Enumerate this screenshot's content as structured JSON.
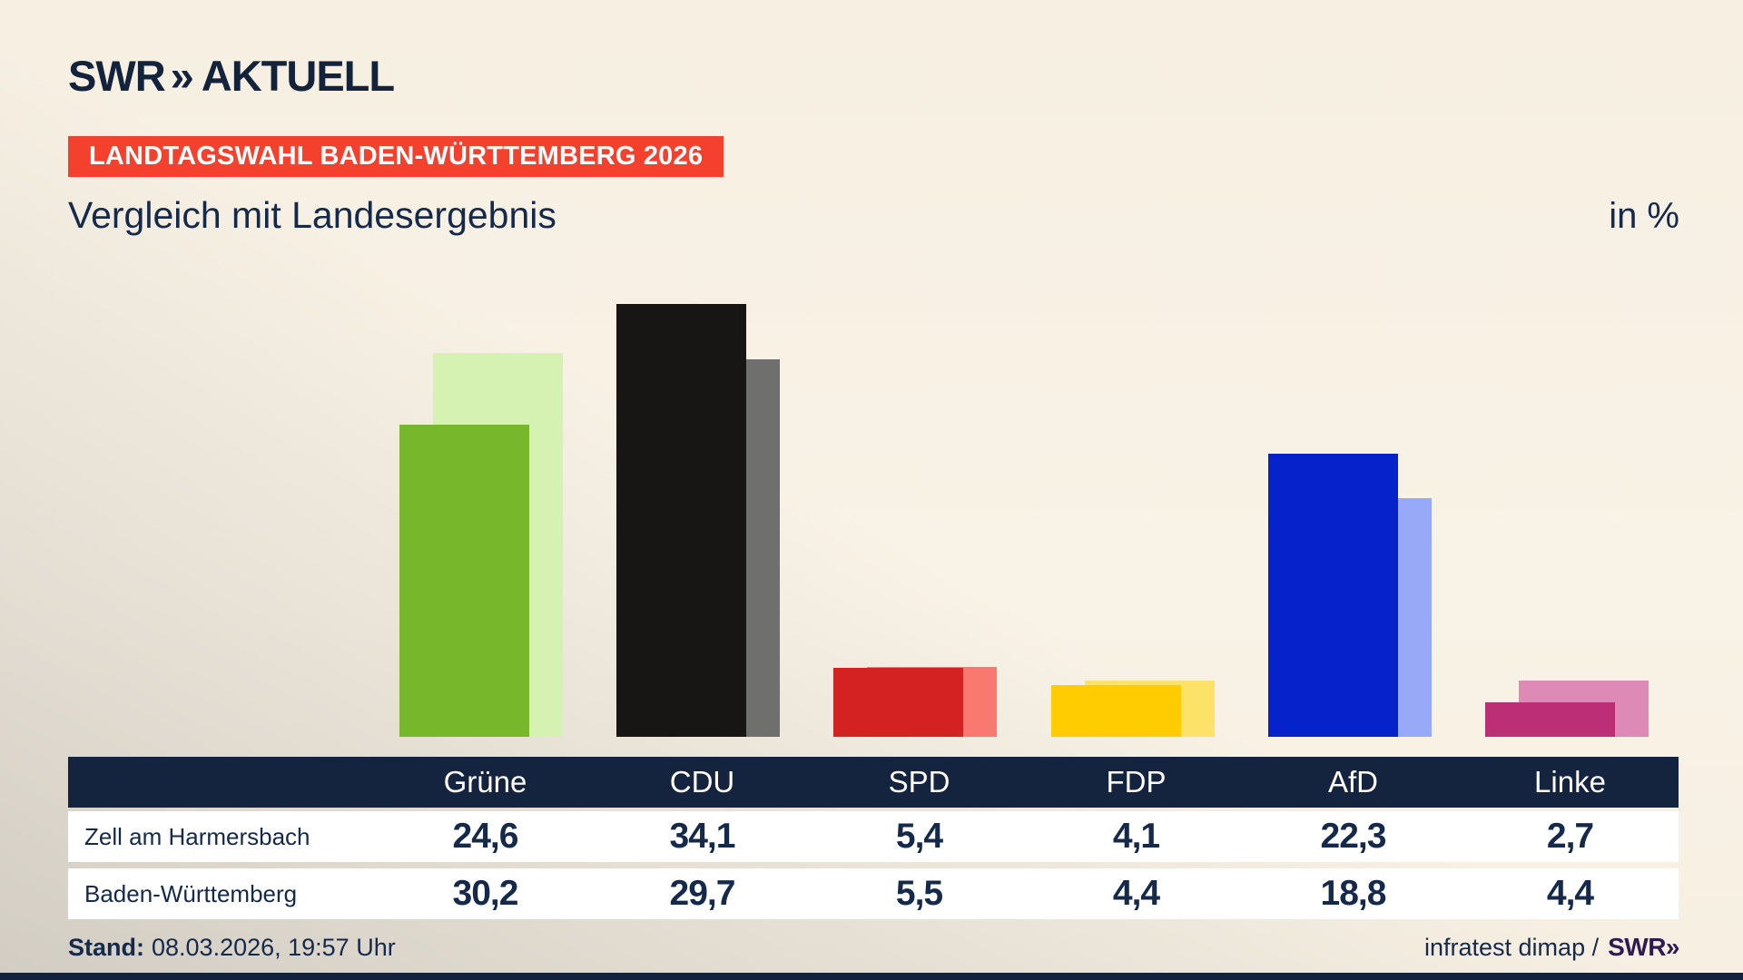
{
  "brand": {
    "swr": "SWR",
    "chevrons": "»",
    "product": "AKTUELL"
  },
  "badge": {
    "label": "LANDTAGSWAHL BADEN-WÜRTTEMBERG 2026"
  },
  "title": "Vergleich mit Landesergebnis",
  "unit_label": "in %",
  "table": {
    "corner_label": "",
    "columns": [
      "Grüne",
      "CDU",
      "SPD",
      "FDP",
      "AfD",
      "Linke"
    ],
    "rows": [
      {
        "label": "Zell am Harmersbach",
        "values": [
          "24,6",
          "34,1",
          "5,4",
          "4,1",
          "22,3",
          "2,7"
        ]
      },
      {
        "label": "Baden-Württemberg",
        "values": [
          "30,2",
          "29,7",
          "5,5",
          "4,4",
          "18,8",
          "4,4"
        ]
      }
    ]
  },
  "footer": {
    "stand_label": "Stand:",
    "stand_value": "08.03.2026, 19:57 Uhr",
    "source_prefix": "infratest dimap /",
    "source_brand": "SWR»"
  },
  "chart_data": {
    "type": "bar",
    "title": "Vergleich mit Landesergebnis",
    "subtitle": "Landtagswahl Baden-Württemberg 2026, Vergleich Gemeinde- mit Landesergebnis",
    "unit": "in %",
    "categories": [
      "Grüne",
      "CDU",
      "SPD",
      "FDP",
      "AfD",
      "Linke"
    ],
    "series": [
      {
        "name": "Zell am Harmersbach",
        "role": "municipality",
        "values": [
          24.6,
          34.1,
          5.4,
          4.1,
          22.3,
          2.7
        ]
      },
      {
        "name": "Baden-Württemberg",
        "role": "state",
        "values": [
          30.2,
          29.7,
          5.5,
          4.4,
          18.8,
          4.4
        ]
      }
    ],
    "party_colors": [
      {
        "party": "Grüne",
        "municipality": "#76b72b",
        "state": "#d6f2b2"
      },
      {
        "party": "CDU",
        "municipality": "#171614",
        "state": "#6f6f6d"
      },
      {
        "party": "SPD",
        "municipality": "#d32221",
        "state": "#f97970"
      },
      {
        "party": "FDP",
        "municipality": "#ffcc02",
        "state": "#fde269"
      },
      {
        "party": "AfD",
        "municipality": "#0522cb",
        "state": "#98a9f8"
      },
      {
        "party": "Linke",
        "municipality": "#bc2f76",
        "state": "#dd8bb6"
      }
    ],
    "ylim": [
      0,
      38
    ],
    "grid": false,
    "legend_position": "none",
    "value_labels_shown_in_table": true
  },
  "colors": {
    "navy": "#14243e",
    "text_navy": "#15294b",
    "badge_red": "#f4412e",
    "row_white": "#ffffff",
    "bottom_strip": "#13233d",
    "source_brand_violet": "#2f1b52"
  }
}
